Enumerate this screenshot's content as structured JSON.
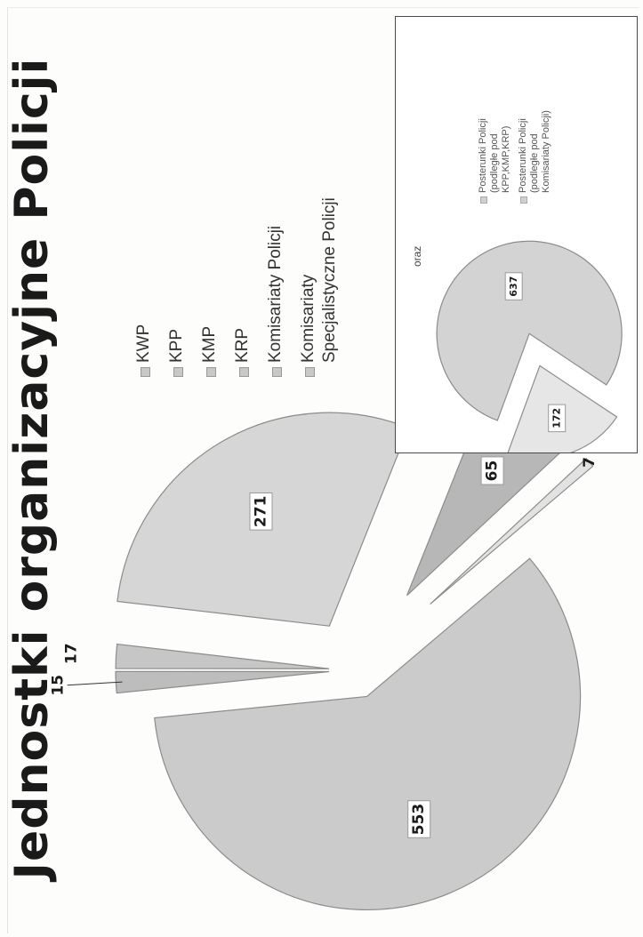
{
  "chart_data": [
    {
      "type": "pie",
      "title": "Jednostki organizacyjne Policji",
      "categories": [
        "KWP",
        "KPP",
        "KMP",
        "KRP",
        "Komisariaty Policji",
        "Komisariaty Specjalistyczne Policji"
      ],
      "values": [
        17,
        271,
        65,
        7,
        553,
        15
      ],
      "data_labels": [
        "17",
        "271",
        "65",
        "7",
        "553",
        "15"
      ],
      "exploded": true,
      "legend_position": "right",
      "colors": [
        "#c6c6c6",
        "#d6d6d6",
        "#b7b7b7",
        "#e2e2e2",
        "#cbcbcb",
        "#bdbdbd"
      ]
    },
    {
      "type": "pie",
      "title": "oraz",
      "categories": [
        "Posterunki Policji (podległe pod KPP,KMP,KRP)",
        "Posterunki Policji (podległe pod Komisariaty Policji)"
      ],
      "values": [
        637,
        172
      ],
      "data_labels": [
        "637",
        "172"
      ],
      "exploded": true,
      "legend_position": "right",
      "colors": [
        "#d3d3d3",
        "#e6e6e6"
      ]
    }
  ]
}
